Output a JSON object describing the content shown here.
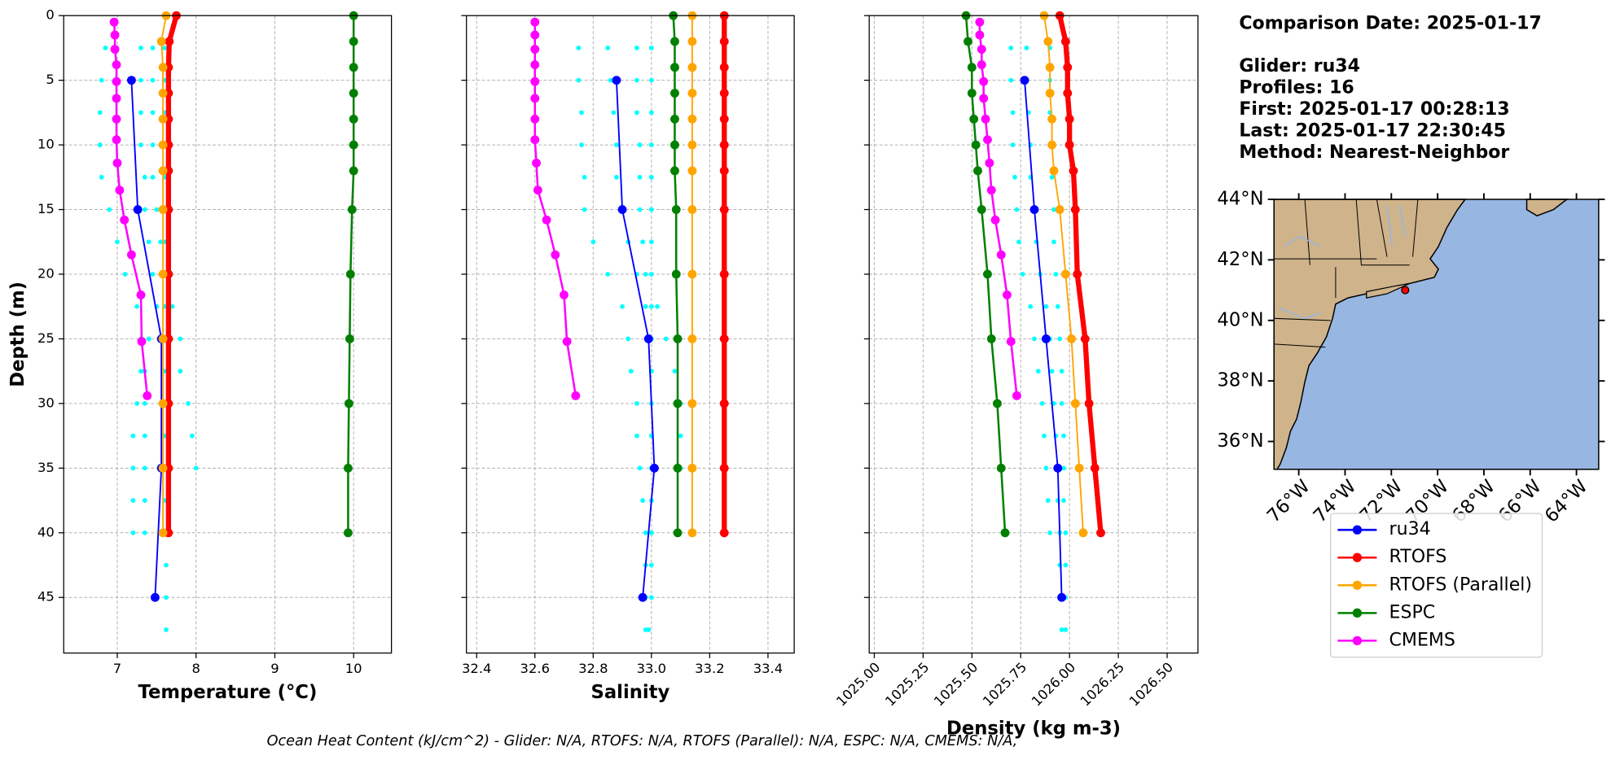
{
  "chart_data": [
    {
      "type": "line",
      "xlabel": "Temperature (°C)",
      "ylabel": "Depth (m)",
      "xlim": [
        6.32,
        10.48
      ],
      "ylim": [
        49.3,
        0
      ],
      "xticks": [
        7,
        8,
        9,
        10
      ],
      "yticks": [
        0,
        5,
        10,
        15,
        20,
        25,
        30,
        35,
        40,
        45
      ],
      "grid": true,
      "ytick_labels": true,
      "xtick_rotation": 0,
      "glider_points": {
        "color": "#00ffff",
        "depth": [
          2.5,
          5,
          7.5,
          10,
          12.5,
          15,
          17.5,
          20,
          22.5,
          25,
          27.5,
          30,
          32.5,
          35,
          37.5,
          40,
          42.5,
          45,
          47.5
        ],
        "profiles": [
          [
            6.85,
            6.8,
            6.78,
            6.78,
            6.8,
            6.9,
            7.0,
            7.1,
            7.25,
            7.3,
            7.3,
            7.25,
            7.2,
            7.2,
            7.2,
            7.2,
            null,
            null,
            null
          ],
          [
            7.3,
            7.3,
            7.3,
            7.3,
            7.35,
            7.35,
            7.4,
            7.45,
            7.5,
            7.4,
            7.35,
            7.35,
            7.35,
            7.35,
            7.35,
            7.35,
            null,
            null,
            null
          ],
          [
            7.45,
            7.45,
            7.45,
            7.45,
            7.45,
            7.5,
            7.55,
            7.6,
            7.7,
            7.8,
            7.8,
            7.9,
            7.95,
            8.0,
            null,
            null,
            null,
            null,
            null
          ],
          [
            7.6,
            7.6,
            7.6,
            7.6,
            7.6,
            7.6,
            7.6,
            7.6,
            7.6,
            7.6,
            7.6,
            7.6,
            7.6,
            7.6,
            7.6,
            7.6,
            7.62,
            7.62,
            7.62
          ]
        ]
      },
      "series": [
        {
          "color": "#0000ff",
          "width": 1.5,
          "depth": [
            5,
            15,
            25,
            35,
            45
          ],
          "values": [
            7.18,
            7.26,
            7.56,
            7.56,
            7.48
          ]
        },
        {
          "color": "#ff0000",
          "width": 5,
          "depth": [
            0,
            2,
            4,
            6,
            8,
            10,
            12,
            15,
            20,
            25,
            30,
            35,
            40
          ],
          "values": [
            7.75,
            7.66,
            7.65,
            7.65,
            7.65,
            7.65,
            7.65,
            7.65,
            7.65,
            7.65,
            7.65,
            7.65,
            7.65
          ]
        },
        {
          "color": "#ffa500",
          "width": 1.5,
          "depth": [
            0,
            2,
            4,
            6,
            8,
            10,
            12,
            15,
            20,
            25,
            30,
            35,
            40
          ],
          "values": [
            7.62,
            7.56,
            7.58,
            7.58,
            7.58,
            7.58,
            7.58,
            7.58,
            7.58,
            7.58,
            7.58,
            7.58,
            7.58
          ]
        },
        {
          "color": "#008000",
          "width": 2,
          "depth": [
            0,
            2,
            4,
            6,
            8,
            10,
            12,
            15,
            20,
            25,
            30,
            35,
            40
          ],
          "values": [
            10.0,
            10.0,
            10.0,
            10.0,
            10.0,
            10.0,
            10.0,
            9.98,
            9.96,
            9.95,
            9.94,
            9.93,
            9.93
          ]
        },
        {
          "color": "#ff00ff",
          "width": 2,
          "depth": [
            0.5,
            1.5,
            2.6,
            3.8,
            5.1,
            6.4,
            8.0,
            9.6,
            11.4,
            13.5,
            15.8,
            18.5,
            21.6,
            25.2,
            29.4
          ],
          "values": [
            6.96,
            6.97,
            6.97,
            6.99,
            6.99,
            6.99,
            6.99,
            6.99,
            7.0,
            7.03,
            7.09,
            7.18,
            7.3,
            7.31,
            7.38
          ]
        }
      ]
    },
    {
      "type": "line",
      "xlabel": "Salinity",
      "xlim": [
        32.365,
        33.49
      ],
      "ylim": [
        49.3,
        0
      ],
      "xticks": [
        32.4,
        32.6,
        32.8,
        {
          "value": 33,
          "label": "33.0"
        },
        33.2,
        33.4
      ],
      "yticks": [
        0,
        5,
        10,
        15,
        20,
        25,
        30,
        35,
        40,
        45
      ],
      "grid": true,
      "ytick_labels": false,
      "xtick_rotation": 0,
      "glider_points": {
        "color": "#00ffff",
        "depth": [
          2.5,
          5,
          7.5,
          10,
          12.5,
          15,
          17.5,
          20,
          22.5,
          25,
          27.5,
          30,
          32.5,
          35,
          37.5,
          40,
          42.5,
          45,
          47.5
        ],
        "profiles": [
          [
            32.75,
            32.75,
            32.76,
            32.76,
            32.77,
            32.77,
            32.8,
            32.85,
            32.9,
            32.92,
            32.93,
            32.95,
            32.95,
            32.96,
            32.97,
            32.98,
            null,
            null,
            null
          ],
          [
            32.85,
            32.86,
            32.87,
            32.88,
            32.88,
            32.9,
            32.92,
            32.95,
            32.98,
            33.0,
            33.0,
            33.0,
            33.0,
            33.0,
            33.0,
            33.0,
            32.98,
            32.98,
            32.98
          ],
          [
            33.0,
            33.0,
            33.0,
            33.0,
            33.0,
            33.0,
            33.0,
            33.0,
            33.02,
            33.05,
            33.08,
            33.1,
            33.1,
            33.1,
            null,
            null,
            null,
            null,
            null
          ],
          [
            32.95,
            32.95,
            32.95,
            32.96,
            32.96,
            32.96,
            32.97,
            32.98,
            33.0,
            33.0,
            33.0,
            33.0,
            33.0,
            33.0,
            33.0,
            33.0,
            33.0,
            33.0,
            32.99
          ]
        ]
      },
      "series": [
        {
          "color": "#0000ff",
          "width": 1.5,
          "depth": [
            5,
            15,
            25,
            35,
            45
          ],
          "values": [
            32.88,
            32.9,
            32.99,
            33.01,
            32.97
          ]
        },
        {
          "color": "#ff0000",
          "width": 5,
          "depth": [
            0,
            2,
            4,
            6,
            8,
            10,
            12,
            15,
            20,
            25,
            30,
            35,
            40
          ],
          "values": [
            33.25,
            33.25,
            33.25,
            33.25,
            33.25,
            33.25,
            33.25,
            33.25,
            33.25,
            33.25,
            33.25,
            33.25,
            33.25
          ]
        },
        {
          "color": "#ffa500",
          "width": 1.5,
          "depth": [
            0,
            2,
            4,
            6,
            8,
            10,
            12,
            15,
            20,
            25,
            30,
            35,
            40
          ],
          "values": [
            33.14,
            33.14,
            33.14,
            33.14,
            33.14,
            33.14,
            33.14,
            33.14,
            33.14,
            33.14,
            33.14,
            33.14,
            33.14
          ]
        },
        {
          "color": "#008000",
          "width": 2,
          "depth": [
            0,
            2,
            4,
            6,
            8,
            10,
            12,
            15,
            20,
            25,
            30,
            35,
            40
          ],
          "values": [
            33.075,
            33.08,
            33.08,
            33.08,
            33.08,
            33.08,
            33.08,
            33.085,
            33.085,
            33.09,
            33.09,
            33.09,
            33.09
          ]
        },
        {
          "color": "#ff00ff",
          "width": 2,
          "depth": [
            0.5,
            1.5,
            2.6,
            3.8,
            5.1,
            6.4,
            8.0,
            9.6,
            11.4,
            13.5,
            15.8,
            18.5,
            21.6,
            25.2,
            29.4
          ],
          "values": [
            32.6,
            32.6,
            32.6,
            32.6,
            32.6,
            32.6,
            32.6,
            32.6,
            32.605,
            32.61,
            32.64,
            32.67,
            32.7,
            32.71,
            32.74
          ]
        }
      ]
    },
    {
      "type": "line",
      "xlabel": "Density (kg m-3)",
      "xlim": [
        1024.974,
        1026.658
      ],
      "ylim": [
        49.3,
        0
      ],
      "xticks": [
        {
          "value": 1025,
          "label": "1025.00"
        },
        1025.25,
        {
          "value": 1025.5,
          "label": "1025.50"
        },
        1025.75,
        {
          "value": 1026,
          "label": "1026.00"
        },
        1026.25,
        {
          "value": 1026.5,
          "label": "1026.50"
        }
      ],
      "yticks": [
        0,
        5,
        10,
        15,
        20,
        25,
        30,
        35,
        40,
        45
      ],
      "grid": true,
      "ytick_labels": false,
      "xtick_rotation": 45,
      "glider_points": {
        "color": "#00ffff",
        "depth": [
          2.5,
          5,
          7.5,
          10,
          12.5,
          15,
          17.5,
          20,
          22.5,
          25,
          27.5,
          30,
          32.5,
          35,
          37.5,
          40,
          42.5,
          45,
          47.5
        ],
        "profiles": [
          [
            1025.7,
            1025.7,
            1025.71,
            1025.71,
            1025.72,
            1025.73,
            1025.74,
            1025.76,
            1025.8,
            1025.82,
            1025.84,
            1025.86,
            1025.87,
            1025.88,
            1025.89,
            1025.9,
            null,
            null,
            null
          ],
          [
            1025.78,
            1025.78,
            1025.79,
            1025.8,
            1025.8,
            1025.81,
            1025.83,
            1025.85,
            1025.88,
            1025.9,
            1025.91,
            1025.92,
            1025.93,
            1025.93,
            1025.94,
            1025.95,
            1025.95,
            1025.96,
            1025.96
          ],
          [
            1025.9,
            1025.9,
            1025.9,
            1025.91,
            1025.91,
            1025.92,
            1025.92,
            1025.93,
            1025.94,
            1025.95,
            1025.96,
            1025.96,
            1025.97,
            1025.97,
            1025.97,
            1025.98,
            1025.98,
            1025.98,
            1025.98
          ]
        ]
      },
      "series": [
        {
          "color": "#0000ff",
          "width": 1.5,
          "depth": [
            5,
            15,
            25,
            35,
            45
          ],
          "values": [
            1025.77,
            1025.82,
            1025.88,
            1025.94,
            1025.96
          ]
        },
        {
          "color": "#ff0000",
          "width": 5,
          "depth": [
            0,
            2,
            4,
            6,
            8,
            10,
            12,
            15,
            20,
            25,
            30,
            35,
            40
          ],
          "values": [
            1025.95,
            1025.98,
            1025.99,
            1025.99,
            1026.0,
            1026.0,
            1026.02,
            1026.03,
            1026.04,
            1026.08,
            1026.1,
            1026.13,
            1026.16
          ]
        },
        {
          "color": "#ffa500",
          "width": 1.5,
          "depth": [
            0,
            2,
            4,
            6,
            8,
            10,
            12,
            15,
            20,
            25,
            30,
            35,
            40
          ],
          "values": [
            1025.87,
            1025.89,
            1025.9,
            1025.9,
            1025.91,
            1025.91,
            1025.92,
            1025.95,
            1025.98,
            1026.01,
            1026.03,
            1026.05,
            1026.07
          ]
        },
        {
          "color": "#008000",
          "width": 2,
          "depth": [
            0,
            2,
            4,
            6,
            8,
            10,
            12,
            15,
            20,
            25,
            30,
            35,
            40
          ],
          "values": [
            1025.47,
            1025.48,
            1025.5,
            1025.5,
            1025.51,
            1025.52,
            1025.53,
            1025.55,
            1025.58,
            1025.6,
            1025.63,
            1025.65,
            1025.67
          ]
        },
        {
          "color": "#ff00ff",
          "width": 2,
          "depth": [
            0.5,
            1.5,
            2.6,
            3.8,
            5.1,
            6.4,
            8.0,
            9.6,
            11.4,
            13.5,
            15.8,
            18.5,
            21.6,
            25.2,
            29.4
          ],
          "values": [
            1025.54,
            1025.54,
            1025.55,
            1025.55,
            1025.56,
            1025.56,
            1025.57,
            1025.58,
            1025.59,
            1025.6,
            1025.62,
            1025.65,
            1025.68,
            1025.7,
            1025.73
          ]
        }
      ]
    }
  ],
  "legend": {
    "entries": [
      {
        "name": "ru34",
        "color": "#0000ff"
      },
      {
        "name": "RTOFS",
        "color": "#ff0000"
      },
      {
        "name": "RTOFS (Parallel)",
        "color": "#ffa500"
      },
      {
        "name": "ESPC",
        "color": "#008000"
      },
      {
        "name": "CMEMS",
        "color": "#ff00ff"
      }
    ]
  },
  "info": [
    "Comparison Date: 2025-01-17",
    "Glider: ru34",
    "Profiles: 16",
    "First: 2025-01-17 00:28:13",
    "Last: 2025-01-17 22:30:45",
    "Method: Nearest-Neighbor"
  ],
  "map": {
    "xlim": [
      -77.07,
      -63.04
    ],
    "ylim": [
      35.08,
      44
    ],
    "xticks": [
      {
        "value": -76,
        "label": "76°W"
      },
      {
        "value": -74,
        "label": "74°W"
      },
      {
        "value": -72,
        "label": "72°W"
      },
      {
        "value": -70,
        "label": "70°W"
      },
      {
        "value": -68,
        "label": "68°W"
      },
      {
        "value": -66,
        "label": "66°W"
      },
      {
        "value": -64,
        "label": "64°W"
      }
    ],
    "yticks": [
      {
        "value": 36,
        "label": "36°N"
      },
      {
        "value": 38,
        "label": "38°N"
      },
      {
        "value": 40,
        "label": "40°N"
      },
      {
        "value": 42,
        "label": "42°N"
      },
      {
        "value": 44,
        "label": "44°N"
      }
    ],
    "glider_position": {
      "lon": -71.4,
      "lat": 41.0,
      "color": "#ff0000"
    }
  },
  "footer": "Ocean Heat Content (kJ/cm^2) - Glider: N/A,  RTOFS: N/A,  RTOFS (Parallel): N/A,  ESPC: N/A,  CMEMS: N/A,"
}
